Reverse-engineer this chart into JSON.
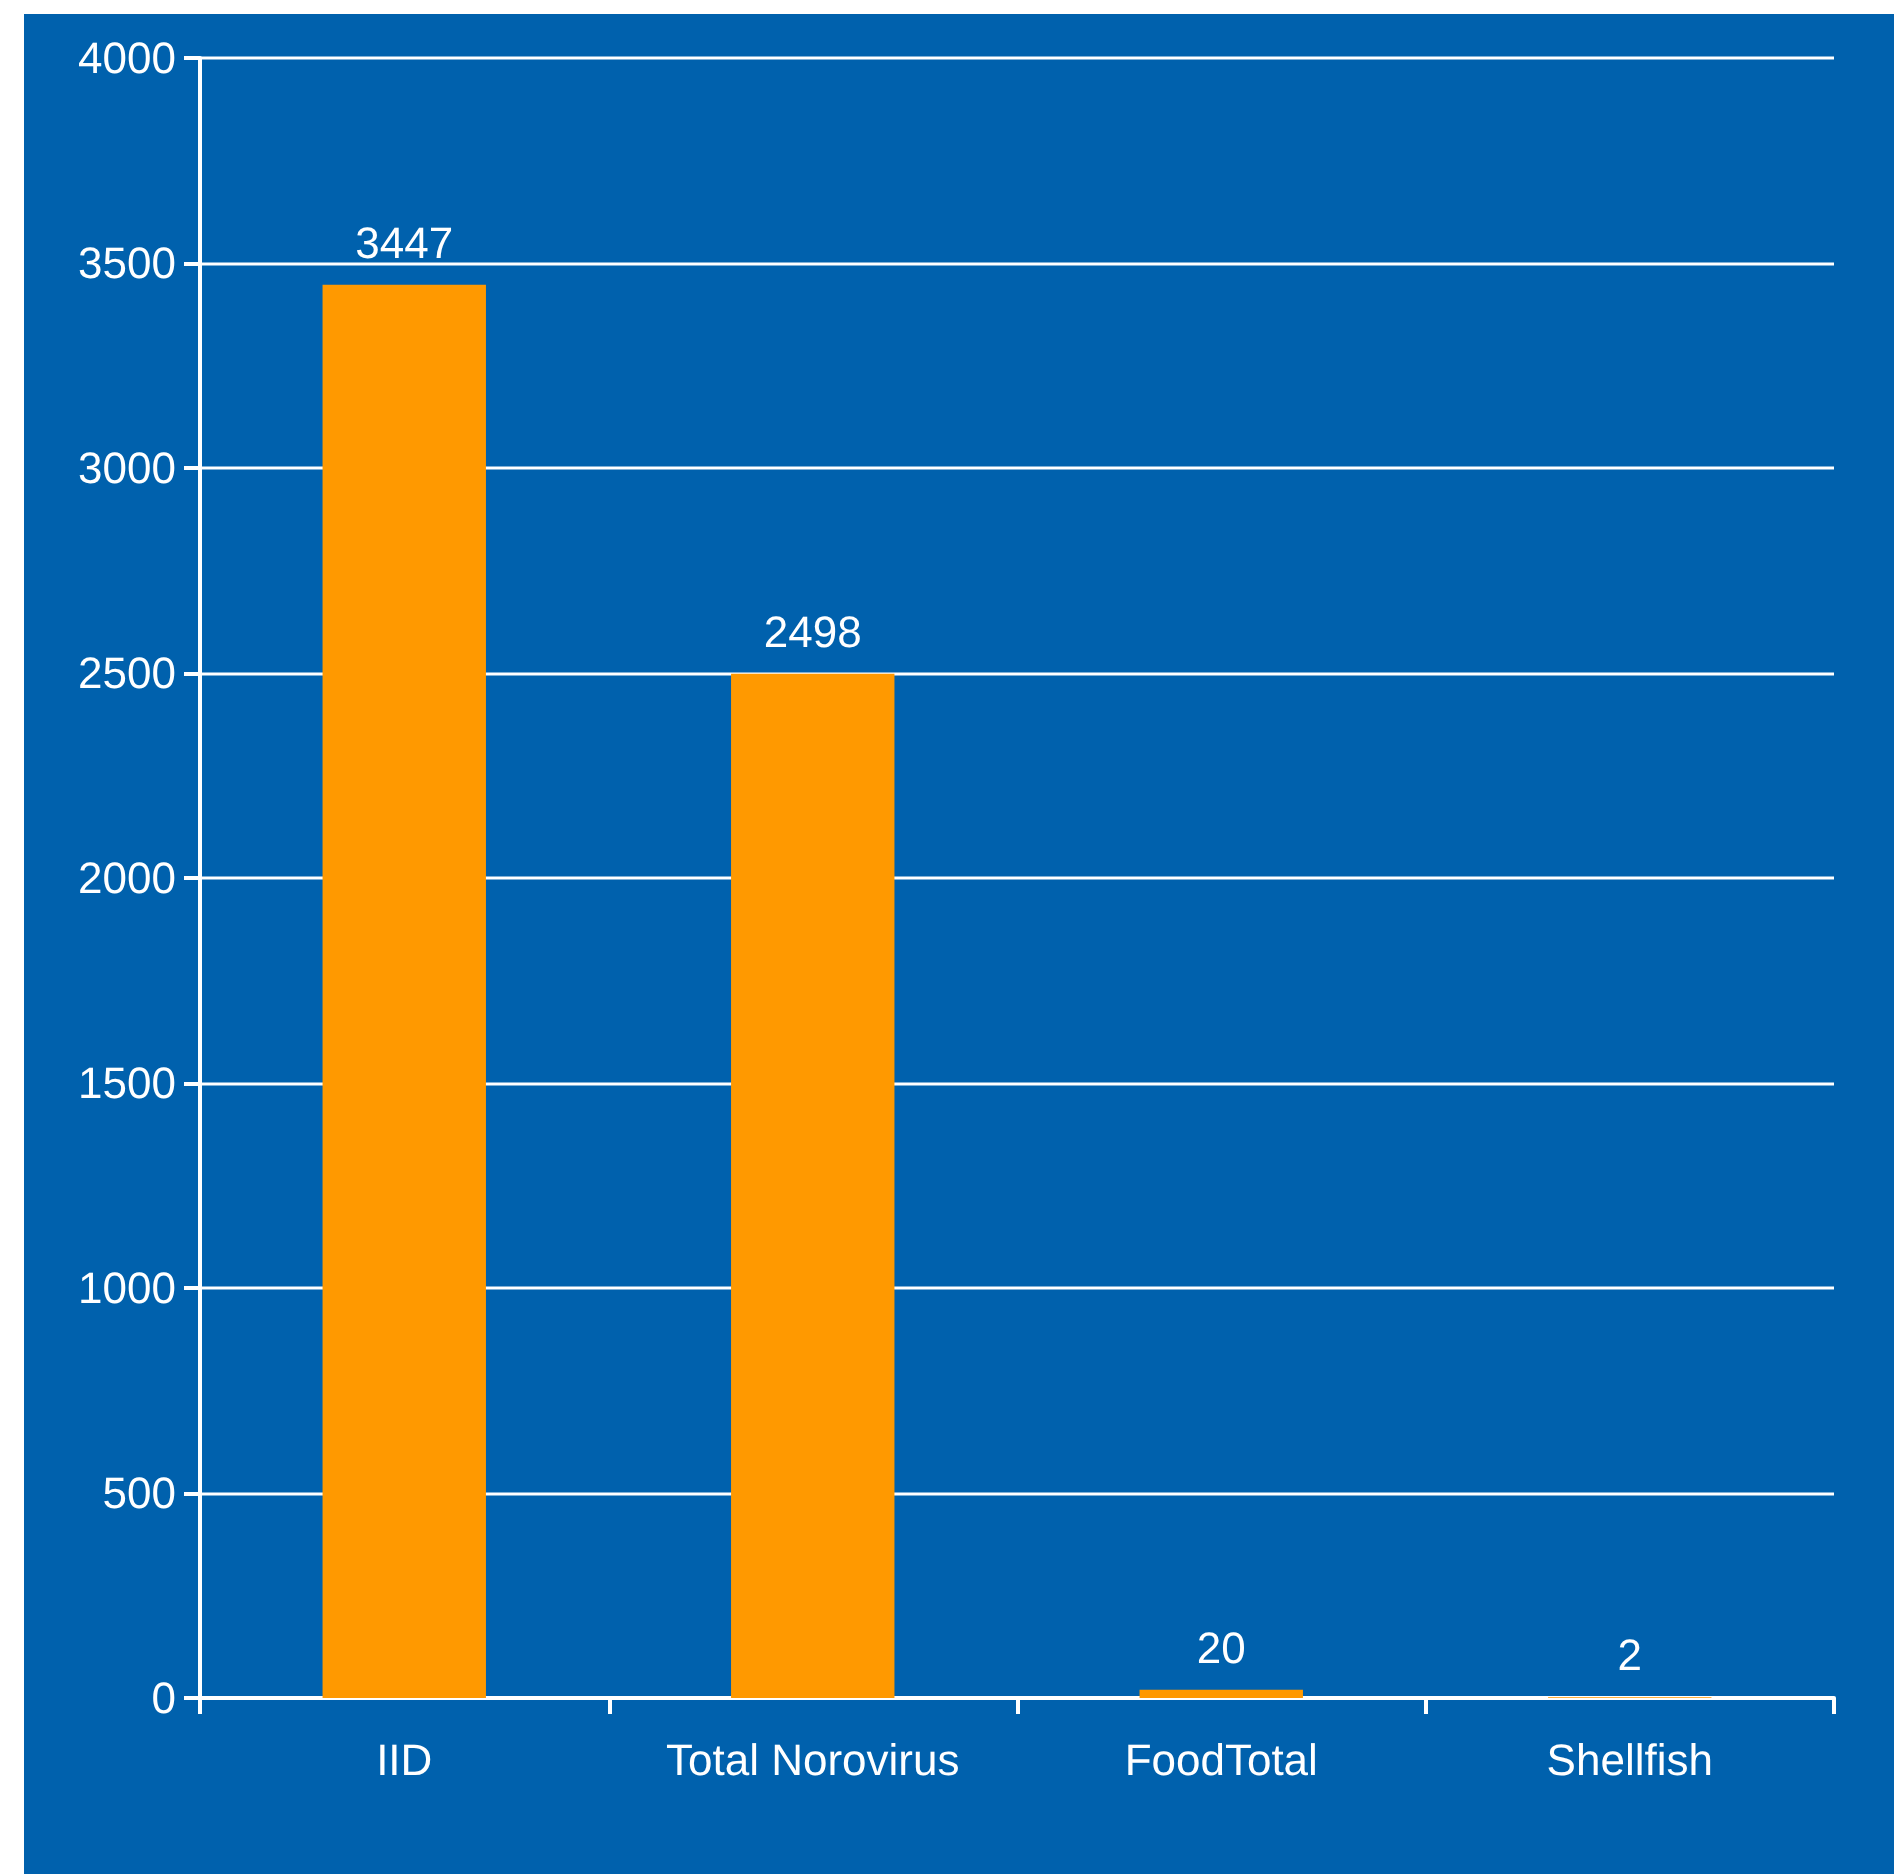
{
  "chart_data": {
    "type": "bar",
    "categories": [
      "IID",
      "Total Norovirus",
      "FoodTotal",
      "Shellfish"
    ],
    "values": [
      3447,
      2498,
      20,
      2
    ],
    "color": "#ff9900",
    "ylim": [
      0,
      4000
    ],
    "yticks": [
      0,
      500,
      1000,
      1500,
      2000,
      2500,
      3000,
      3500,
      4000
    ],
    "grid": "y",
    "data_labels": true
  }
}
